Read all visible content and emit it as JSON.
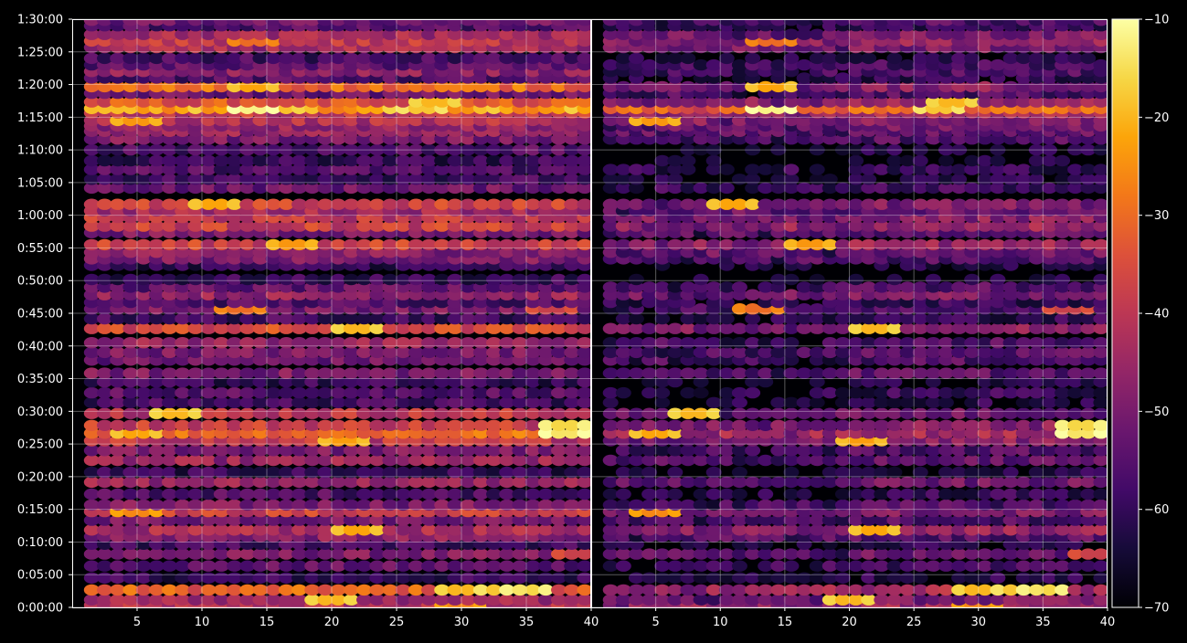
{
  "chart_data": {
    "type": "heatmap",
    "title": "",
    "xlabel": "",
    "ylabel": "",
    "panels": [
      {
        "name": "",
        "xlim": [
          1,
          40
        ]
      },
      {
        "name": "",
        "xlim": [
          1,
          40
        ]
      }
    ],
    "x_ticks": [
      "5",
      "10",
      "15",
      "20",
      "25",
      "30",
      "35",
      "40"
    ],
    "y_ticks": [
      "0:00:00",
      "0:05:00",
      "0:10:00",
      "0:15:00",
      "0:20:00",
      "0:25:00",
      "0:30:00",
      "0:35:00",
      "0:40:00",
      "0:45:00",
      "0:50:00",
      "0:55:00",
      "1:00:00",
      "1:05:00",
      "1:10:00",
      "1:15:00",
      "1:20:00",
      "1:25:00",
      "1:30:00"
    ],
    "ylim_seconds": [
      0,
      5400
    ],
    "colorbar": {
      "colormap": "inferno",
      "range": [
        -70,
        -10
      ],
      "ticks": [
        "−70",
        "−60",
        "−50",
        "−40",
        "−30",
        "−20",
        "−10"
      ]
    },
    "grid": true,
    "bands": [
      {
        "time": "0:00:20",
        "level_left": -42,
        "level_right": -45,
        "hot": [
          [
            30,
            -28
          ]
        ]
      },
      {
        "time": "0:01:10",
        "level_left": -44,
        "level_right": -50,
        "hot": [
          [
            20,
            -22
          ]
        ]
      },
      {
        "time": "0:02:40",
        "level_left": -32,
        "level_right": -44,
        "hot": [
          [
            30,
            -22
          ],
          [
            33,
            -20
          ],
          [
            35,
            -18
          ]
        ]
      },
      {
        "time": "0:04:30",
        "level_left": -60,
        "level_right": -62,
        "hot": []
      },
      {
        "time": "0:06:20",
        "level_left": -54,
        "level_right": -58,
        "hot": []
      },
      {
        "time": "0:08:10",
        "level_left": -50,
        "level_right": -52,
        "hot": [
          [
            39,
            -40
          ]
        ]
      },
      {
        "time": "0:09:40",
        "level_left": -58,
        "level_right": -62,
        "hot": []
      },
      {
        "time": "0:10:50",
        "level_left": -48,
        "level_right": -55,
        "hot": []
      },
      {
        "time": "0:11:50",
        "level_left": -44,
        "level_right": -46,
        "hot": [
          [
            22,
            -24
          ]
        ]
      },
      {
        "time": "0:13:20",
        "level_left": -50,
        "level_right": -56,
        "hot": []
      },
      {
        "time": "0:14:40",
        "level_left": -38,
        "level_right": -50,
        "hot": [
          [
            5,
            -28
          ]
        ]
      },
      {
        "time": "0:15:40",
        "level_left": -50,
        "level_right": -56,
        "hot": []
      },
      {
        "time": "0:17:20",
        "level_left": -56,
        "level_right": -60,
        "hot": []
      },
      {
        "time": "0:19:10",
        "level_left": -46,
        "level_right": -52,
        "hot": []
      },
      {
        "time": "0:20:40",
        "level_left": -60,
        "level_right": -63,
        "hot": []
      },
      {
        "time": "0:22:30",
        "level_left": -46,
        "level_right": -54,
        "hot": []
      },
      {
        "time": "0:24:00",
        "level_left": -50,
        "level_right": -56,
        "hot": []
      },
      {
        "time": "0:25:30",
        "level_left": -40,
        "level_right": -48,
        "hot": [
          [
            21,
            -25
          ]
        ]
      },
      {
        "time": "0:26:40",
        "level_left": -30,
        "level_right": -44,
        "hot": [
          [
            5,
            -24
          ],
          [
            38,
            -16
          ]
        ]
      },
      {
        "time": "0:27:50",
        "level_left": -38,
        "level_right": -48,
        "hot": [
          [
            38,
            -18
          ]
        ]
      },
      {
        "time": "0:29:40",
        "level_left": -40,
        "level_right": -52,
        "hot": [
          [
            8,
            -22
          ]
        ]
      },
      {
        "time": "0:31:20",
        "level_left": -58,
        "level_right": -62,
        "hot": []
      },
      {
        "time": "0:32:50",
        "level_left": -55,
        "level_right": -60,
        "hot": []
      },
      {
        "time": "0:34:30",
        "level_left": -60,
        "level_right": -64,
        "hot": []
      },
      {
        "time": "0:35:50",
        "level_left": -50,
        "level_right": -54,
        "hot": []
      },
      {
        "time": "0:37:50",
        "level_left": -52,
        "level_right": -56,
        "hot": []
      },
      {
        "time": "0:39:00",
        "level_left": -50,
        "level_right": -55,
        "hot": []
      },
      {
        "time": "0:40:30",
        "level_left": -46,
        "level_right": -56,
        "hot": []
      },
      {
        "time": "0:42:40",
        "level_left": -36,
        "level_right": -48,
        "hot": [
          [
            22,
            -22
          ]
        ]
      },
      {
        "time": "0:44:10",
        "level_left": -58,
        "level_right": -60,
        "hot": []
      },
      {
        "time": "0:45:40",
        "level_left": -50,
        "level_right": -56,
        "hot": [
          [
            13,
            -32
          ],
          [
            37,
            -40
          ]
        ]
      },
      {
        "time": "0:46:40",
        "level_left": -56,
        "level_right": -60,
        "hot": []
      },
      {
        "time": "0:47:50",
        "level_left": -46,
        "level_right": -50,
        "hot": []
      },
      {
        "time": "0:49:00",
        "level_left": -54,
        "level_right": -56,
        "hot": []
      },
      {
        "time": "0:50:10",
        "level_left": -60,
        "level_right": -64,
        "hot": []
      },
      {
        "time": "0:52:20",
        "level_left": -60,
        "level_right": -64,
        "hot": []
      },
      {
        "time": "0:53:20",
        "level_left": -50,
        "level_right": -56,
        "hot": []
      },
      {
        "time": "0:54:20",
        "level_left": -48,
        "level_right": -52,
        "hot": []
      },
      {
        "time": "0:55:30",
        "level_left": -38,
        "level_right": -46,
        "hot": [
          [
            17,
            -26
          ]
        ]
      },
      {
        "time": "0:57:20",
        "level_left": -50,
        "level_right": -54,
        "hot": []
      },
      {
        "time": "0:58:20",
        "level_left": -38,
        "level_right": -46,
        "hot": []
      },
      {
        "time": "0:59:40",
        "level_left": -40,
        "level_right": -48,
        "hot": []
      },
      {
        "time": "1:00:40",
        "level_left": -44,
        "level_right": -52,
        "hot": []
      },
      {
        "time": "1:01:40",
        "level_left": -38,
        "level_right": -50,
        "hot": [
          [
            11,
            -24
          ]
        ]
      },
      {
        "time": "1:04:10",
        "level_left": -52,
        "level_right": -58,
        "hot": []
      },
      {
        "time": "1:05:30",
        "level_left": -58,
        "level_right": -63,
        "hot": []
      },
      {
        "time": "1:07:00",
        "level_left": -56,
        "level_right": -60,
        "hot": []
      },
      {
        "time": "1:08:20",
        "level_left": -60,
        "level_right": -65,
        "hot": []
      },
      {
        "time": "1:10:00",
        "level_left": -56,
        "level_right": -64,
        "hot": []
      },
      {
        "time": "1:11:40",
        "level_left": -50,
        "level_right": -56,
        "hot": []
      },
      {
        "time": "1:12:50",
        "level_left": -46,
        "level_right": -52,
        "hot": []
      },
      {
        "time": "1:13:40",
        "level_left": -46,
        "level_right": -52,
        "hot": []
      },
      {
        "time": "1:14:30",
        "level_left": -42,
        "level_right": -48,
        "hot": [
          [
            5,
            -26
          ]
        ]
      },
      {
        "time": "1:15:40",
        "level_left": -40,
        "level_right": -44,
        "hot": []
      },
      {
        "time": "1:16:20",
        "level_left": -22,
        "level_right": -30,
        "hot": [
          [
            14,
            -14
          ],
          [
            27,
            -20
          ]
        ]
      },
      {
        "time": "1:17:20",
        "level_left": -34,
        "level_right": -46,
        "hot": [
          [
            28,
            -22
          ]
        ]
      },
      {
        "time": "1:18:40",
        "level_left": -52,
        "level_right": -56,
        "hot": []
      },
      {
        "time": "1:19:40",
        "level_left": -30,
        "level_right": -48,
        "hot": [
          [
            14,
            -24
          ]
        ]
      },
      {
        "time": "1:21:00",
        "level_left": -56,
        "level_right": -62,
        "hot": []
      },
      {
        "time": "1:22:00",
        "level_left": -48,
        "level_right": -56,
        "hot": []
      },
      {
        "time": "1:23:00",
        "level_left": -54,
        "level_right": -58,
        "hot": []
      },
      {
        "time": "1:24:00",
        "level_left": -58,
        "level_right": -62,
        "hot": []
      },
      {
        "time": "1:25:40",
        "level_left": -44,
        "level_right": -50,
        "hot": []
      },
      {
        "time": "1:26:40",
        "level_left": -40,
        "level_right": -46,
        "hot": [
          [
            14,
            -32
          ]
        ]
      },
      {
        "time": "1:27:40",
        "level_left": -44,
        "level_right": -50,
        "hot": []
      },
      {
        "time": "1:29:00",
        "level_left": -56,
        "level_right": -60,
        "hot": []
      },
      {
        "time": "1:29:50",
        "level_left": -52,
        "level_right": -56,
        "hot": []
      }
    ]
  }
}
